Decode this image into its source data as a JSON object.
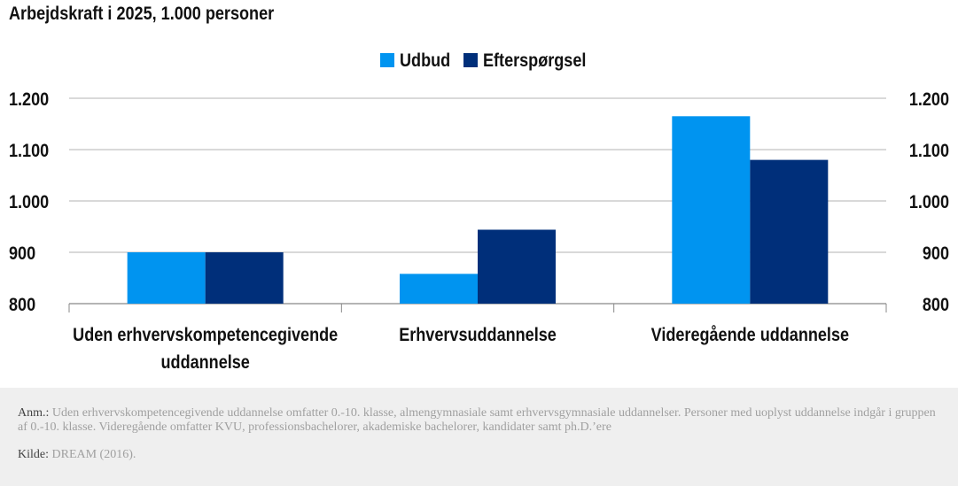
{
  "title": "Arbejdskraft i 2025, 1.000 personer",
  "chart_data": {
    "type": "bar",
    "categories": [
      [
        "Uden erhvervskompetencegivende",
        "uddannelse"
      ],
      [
        "Erhvervsuddannelse"
      ],
      [
        "Videregående uddannelse"
      ]
    ],
    "series": [
      {
        "name": "Udbud",
        "values": [
          900,
          858,
          1165
        ],
        "color": "#0094f0"
      },
      {
        "name": "Efterspørgsel",
        "values": [
          900,
          944,
          1080
        ],
        "color": "#002f7a"
      }
    ],
    "ylim": [
      800,
      1200
    ],
    "yticks": [
      800,
      900,
      1000,
      1100,
      1200
    ],
    "ytick_labels": [
      "800",
      "900",
      "1.000",
      "1.100",
      "1.200"
    ],
    "grid": true,
    "dual_y_axis": true,
    "legend_position": "top-center"
  },
  "footnote": {
    "note_label": "Anm.:",
    "note_text": "Uden erhvervskompetencegivende uddannelse omfatter 0.-10. klasse, almengymnasiale samt erhvervsgymnasiale uddannelser. Personer med uoplyst uddannelse indgår i gruppen af 0.-10. klasse. Videregående omfatter KVU, professionsbachelorer, akademiske bachelorer, kandidater samt ph.D.’ere",
    "source_label": "Kilde:",
    "source_text": "DREAM (2016)."
  }
}
